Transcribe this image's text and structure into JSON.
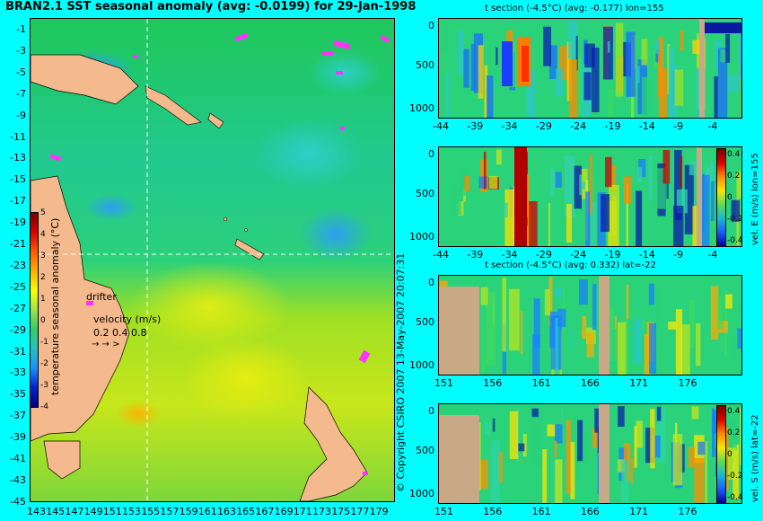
{
  "map": {
    "title": "BRAN2.1 SST seasonal anomaly (avg: -0.0199) for 29-Jan-1998",
    "y_ticks": [
      "-1",
      "-3",
      "-5",
      "-7",
      "-9",
      "-11",
      "-13",
      "-15",
      "-17",
      "-19",
      "-21",
      "-23",
      "-25",
      "-27",
      "-29",
      "-31",
      "-33",
      "-35",
      "-37",
      "-39",
      "-41",
      "-43",
      "-45"
    ],
    "x_ticks": [
      "143",
      "145",
      "147",
      "149",
      "151",
      "153",
      "155",
      "157",
      "159",
      "161",
      "163",
      "165",
      "167",
      "169",
      "171",
      "173",
      "175",
      "177",
      "179"
    ],
    "colorbar_label": "temperature seasonal anomaly (°C)",
    "colorbar_ticks": [
      "5",
      "4",
      "3",
      "2",
      "1",
      "0",
      "-1",
      "-2",
      "-3",
      "-4"
    ],
    "drifter_label": "drifter",
    "velocity_label": "velocity (m/s)",
    "velocity_ticks": "0.2 0.4 0.8",
    "section_lon": 155,
    "section_lat": -22
  },
  "copyright": "© Copyright CSIRO 2007    13-May-2007 20:07:31",
  "sections": [
    {
      "title": "t section (-4.5°C) (avg: -0.177) lon=155",
      "y_ticks": [
        "0",
        "500",
        "1000"
      ],
      "x_ticks": [
        "-44",
        "-39",
        "-34",
        "-29",
        "-24",
        "-19",
        "-14",
        "-9",
        "-4"
      ]
    },
    {
      "title": "",
      "y_ticks": [
        "0",
        "500",
        "1000"
      ],
      "x_ticks": [
        "-44",
        "-39",
        "-34",
        "-29",
        "-24",
        "-19",
        "-14",
        "-9",
        "-4"
      ],
      "cbar_label": "vel. E (m/s) lon=155",
      "cbar_ticks": [
        "0.4",
        "0.2",
        "0",
        "-0.2",
        "-0.4"
      ]
    },
    {
      "title": "t section (-4.5°C) (avg: 0.332) lat=-22",
      "y_ticks": [
        "0",
        "500",
        "1000"
      ],
      "x_ticks": [
        "151",
        "156",
        "161",
        "166",
        "171",
        "176"
      ]
    },
    {
      "title": "",
      "y_ticks": [
        "0",
        "500",
        "1000"
      ],
      "x_ticks": [
        "151",
        "156",
        "161",
        "166",
        "171",
        "176"
      ],
      "cbar_label": "vel. S (m/s) lat=-22",
      "cbar_ticks": [
        "0.4",
        "0.2",
        "0",
        "-0.2",
        "-0.4"
      ]
    }
  ],
  "chart_data": [
    {
      "type": "heatmap",
      "title": "BRAN2.1 SST seasonal anomaly (avg: -0.0199) for 29-Jan-1998",
      "xlim": [
        142,
        180
      ],
      "ylim": [
        -45,
        0
      ],
      "colorbar": {
        "label": "temperature seasonal anomaly (°C)",
        "range": [
          -4,
          5
        ]
      },
      "average": -0.0199
    },
    {
      "type": "heatmap",
      "title": "t section (-4.5°C) (avg: -0.177) lon=155",
      "xlim": [
        -45,
        -1
      ],
      "ylim": [
        1050,
        0
      ],
      "average": -0.177
    },
    {
      "type": "heatmap",
      "title": "",
      "xlim": [
        -45,
        -1
      ],
      "ylim": [
        1050,
        0
      ],
      "colorbar": {
        "label": "vel. E (m/s) lon=155",
        "range": [
          -0.4,
          0.4
        ]
      }
    },
    {
      "type": "heatmap",
      "title": "t section (-4.5°C) (avg: 0.332) lat=-22",
      "xlim": [
        150,
        180
      ],
      "ylim": [
        1050,
        0
      ],
      "average": 0.332
    },
    {
      "type": "heatmap",
      "title": "",
      "xlim": [
        150,
        180
      ],
      "ylim": [
        1050,
        0
      ],
      "colorbar": {
        "label": "vel. S (m/s) lat=-22",
        "range": [
          -0.4,
          0.4
        ]
      }
    }
  ]
}
